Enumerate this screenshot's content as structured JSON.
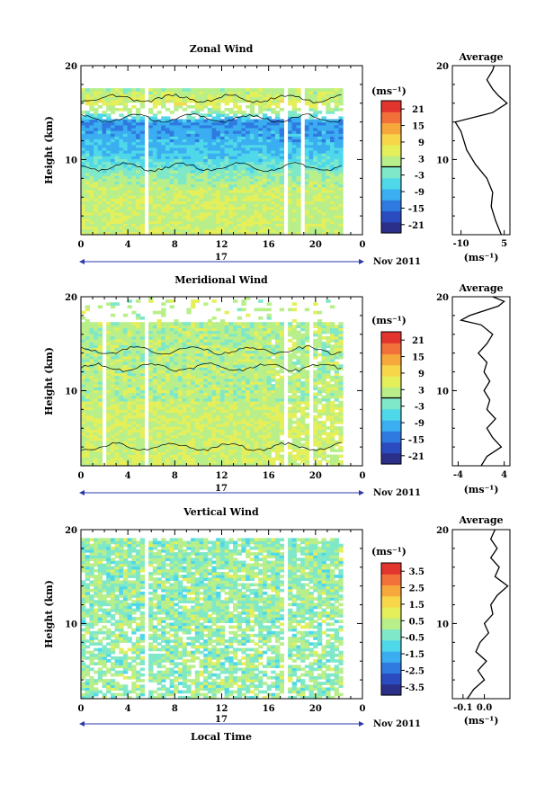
{
  "chart_data": [
    {
      "type": "heatmap",
      "title": "Zonal Wind",
      "ylabel": "Height (km)",
      "ylim": [
        2,
        20
      ],
      "y_ticks": [
        "20",
        "10"
      ],
      "x_ticks": [
        "0",
        "4",
        "8",
        "12",
        "16",
        "20",
        "0"
      ],
      "xlim": [
        0,
        24
      ],
      "date_day": "17",
      "date_month": "Nov 2011",
      "unit": "(ms⁻¹)",
      "colorbar_ticks": [
        "21",
        "15",
        "9",
        "3",
        "-3",
        "-9",
        "-15",
        "-21"
      ],
      "colorbar_range": [
        -24,
        24
      ],
      "data_gaps_hours": [
        [
          5.4,
          5.8
        ],
        [
          17.4,
          17.8
        ],
        [
          18.8,
          19.2
        ]
      ],
      "data_end_hour": 22.3,
      "profile_points": [
        {
          "height": 2.0,
          "value": 4.0
        },
        {
          "height": 3.5,
          "value": 2.0
        },
        {
          "height": 5.0,
          "value": 0.5
        },
        {
          "height": 6.5,
          "value": 1.0
        },
        {
          "height": 8.0,
          "value": -1.0
        },
        {
          "height": 9.5,
          "value": -5.0
        },
        {
          "height": 11.0,
          "value": -8.0
        },
        {
          "height": 13.0,
          "value": -10.0
        },
        {
          "height": 14.0,
          "value": -12.0
        },
        {
          "height": 15.0,
          "value": 1.0
        },
        {
          "height": 16.0,
          "value": 6.0
        },
        {
          "height": 16.8,
          "value": 3.0
        },
        {
          "height": 17.5,
          "value": 1.0
        },
        {
          "height": 18.5,
          "value": -1.0
        },
        {
          "height": 19.5,
          "value": 1.0
        },
        {
          "height": 20.0,
          "value": 1.5
        }
      ],
      "profile_title": "Average",
      "profile_xlim": [
        -13,
        7
      ],
      "profile_xticks": [
        {
          "value": -10,
          "label": "-10"
        },
        {
          "value": 5,
          "label": "5"
        }
      ],
      "profile_xlabel": "(ms⁻¹)"
    },
    {
      "type": "heatmap",
      "title": "Meridional Wind",
      "ylabel": "Height (km)",
      "ylim": [
        2,
        20
      ],
      "y_ticks": [
        "20",
        "10"
      ],
      "x_ticks": [
        "0",
        "4",
        "8",
        "12",
        "16",
        "20",
        "0"
      ],
      "xlim": [
        0,
        24
      ],
      "date_day": "17",
      "date_month": "Nov 2011",
      "unit": "(ms⁻¹)",
      "colorbar_ticks": [
        "21",
        "15",
        "9",
        "3",
        "-3",
        "-9",
        "-15",
        "-21"
      ],
      "colorbar_range": [
        -24,
        24
      ],
      "data_gaps_hours": [
        [
          1.8,
          2.0
        ],
        [
          5.4,
          5.8
        ],
        [
          17.4,
          17.8
        ],
        [
          19.5,
          19.7
        ]
      ],
      "data_end_hour": 22.3,
      "profile_points": [
        {
          "height": 2.0,
          "value": 0.0
        },
        {
          "height": 3.0,
          "value": 1.0
        },
        {
          "height": 4.0,
          "value": 3.5
        },
        {
          "height": 5.0,
          "value": 2.0
        },
        {
          "height": 6.0,
          "value": 1.0
        },
        {
          "height": 7.0,
          "value": 2.5
        },
        {
          "height": 8.0,
          "value": 1.0
        },
        {
          "height": 9.0,
          "value": 1.5
        },
        {
          "height": 10.0,
          "value": 0.5
        },
        {
          "height": 11.0,
          "value": 1.5
        },
        {
          "height": 12.0,
          "value": 0.5
        },
        {
          "height": 13.0,
          "value": 1.0
        },
        {
          "height": 14.0,
          "value": -0.5
        },
        {
          "height": 15.0,
          "value": 1.0
        },
        {
          "height": 16.0,
          "value": 2.0
        },
        {
          "height": 17.0,
          "value": 0.0
        },
        {
          "height": 17.5,
          "value": -3.5
        },
        {
          "height": 18.0,
          "value": -2.0
        },
        {
          "height": 19.0,
          "value": 3.0
        },
        {
          "height": 19.5,
          "value": 4.0
        },
        {
          "height": 20.0,
          "value": 2.0
        }
      ],
      "profile_title": "Average",
      "profile_xlim": [
        -5,
        5
      ],
      "profile_xticks": [
        {
          "value": -4,
          "label": "-4"
        },
        {
          "value": 4,
          "label": "4"
        }
      ],
      "profile_xlabel": "(ms⁻¹)"
    },
    {
      "type": "heatmap",
      "title": "Vertical Wind",
      "ylabel": "Height (km)",
      "xlabel": "Local Time",
      "ylim": [
        2,
        20
      ],
      "y_ticks": [
        "20",
        "10"
      ],
      "x_ticks": [
        "0",
        "4",
        "8",
        "12",
        "16",
        "20",
        "0"
      ],
      "xlim": [
        0,
        24
      ],
      "date_day": "17",
      "date_month": "Nov 2011",
      "unit": "(ms⁻¹)",
      "colorbar_ticks": [
        "3.5",
        "2.5",
        "1.5",
        "0.5",
        "-0.5",
        "-1.5",
        "-2.5",
        "-3.5"
      ],
      "colorbar_range": [
        -4,
        4
      ],
      "data_gaps_hours": [
        [
          5.4,
          5.8
        ],
        [
          17.4,
          17.8
        ],
        [
          19.4,
          19.6
        ]
      ],
      "data_end_hour": 22.3,
      "profile_points": [
        {
          "height": 2.0,
          "value": -0.08
        },
        {
          "height": 3.0,
          "value": -0.05
        },
        {
          "height": 4.0,
          "value": 0.0
        },
        {
          "height": 5.0,
          "value": -0.03
        },
        {
          "height": 6.0,
          "value": 0.01
        },
        {
          "height": 7.0,
          "value": -0.04
        },
        {
          "height": 8.0,
          "value": -0.02
        },
        {
          "height": 9.0,
          "value": 0.02
        },
        {
          "height": 10.0,
          "value": 0.0
        },
        {
          "height": 11.0,
          "value": 0.04
        },
        {
          "height": 12.0,
          "value": 0.03
        },
        {
          "height": 13.0,
          "value": 0.06
        },
        {
          "height": 14.0,
          "value": 0.11
        },
        {
          "height": 15.0,
          "value": 0.05
        },
        {
          "height": 16.0,
          "value": 0.07
        },
        {
          "height": 17.0,
          "value": 0.03
        },
        {
          "height": 18.0,
          "value": 0.06
        },
        {
          "height": 19.0,
          "value": 0.03
        },
        {
          "height": 20.0,
          "value": 0.05
        }
      ],
      "profile_title": "Average",
      "profile_xlim": [
        -0.15,
        0.12
      ],
      "profile_xticks": [
        {
          "value": -0.1,
          "label": "-0.1"
        },
        {
          "value": 0.0,
          "label": "0.0"
        }
      ],
      "profile_xlabel": "(ms⁻¹)"
    }
  ],
  "colors": {
    "colorbar": [
      "#2b2f8a",
      "#2a4cc0",
      "#2f7ae0",
      "#3aaef0",
      "#4fd8ea",
      "#7fe8c8",
      "#b8ef8a",
      "#e4ef5a",
      "#f7d64a",
      "#f7a83c",
      "#f2703a",
      "#e2352e"
    ],
    "date_bar": "#2b3aa8"
  }
}
